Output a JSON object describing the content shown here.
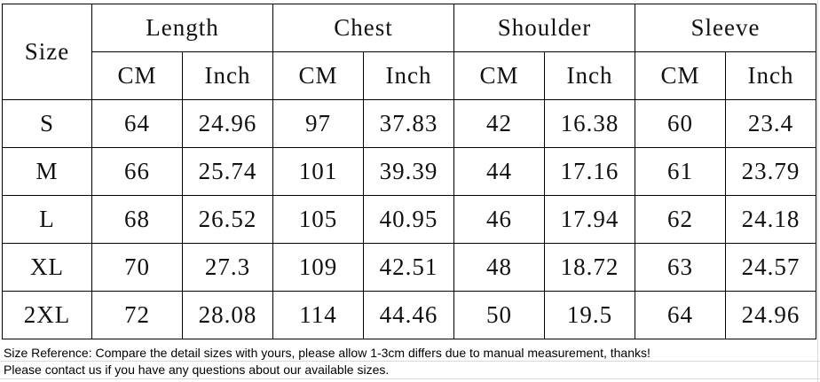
{
  "table": {
    "size_header": "Size",
    "groups": [
      {
        "label": "Length",
        "units": [
          "CM",
          "Inch"
        ]
      },
      {
        "label": "Chest",
        "units": [
          "CM",
          "Inch"
        ]
      },
      {
        "label": "Shoulder",
        "units": [
          "CM",
          "Inch"
        ]
      },
      {
        "label": "Sleeve",
        "units": [
          "CM",
          "Inch"
        ]
      }
    ],
    "rows": [
      [
        "S",
        "64",
        "24.96",
        "97",
        "37.83",
        "42",
        "16.38",
        "60",
        "23.4"
      ],
      [
        "M",
        "66",
        "25.74",
        "101",
        "39.39",
        "44",
        "17.16",
        "61",
        "23.79"
      ],
      [
        "L",
        "68",
        "26.52",
        "105",
        "40.95",
        "46",
        "17.94",
        "62",
        "24.18"
      ],
      [
        "XL",
        "70",
        "27.3",
        "109",
        "42.51",
        "48",
        "18.72",
        "63",
        "24.57"
      ],
      [
        "2XL",
        "72",
        "28.08",
        "114",
        "44.46",
        "50",
        "19.5",
        "64",
        "24.96"
      ]
    ]
  },
  "notes": [
    "Size Reference: Compare the detail sizes with yours, please allow 1-3cm differs due to manual measurement, thanks!",
    "Please contact us if you have any questions about our available sizes."
  ]
}
